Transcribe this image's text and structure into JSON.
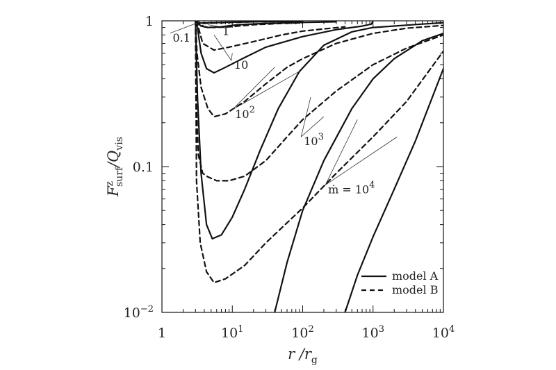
{
  "chart_data": {
    "type": "line",
    "x_scale": "log",
    "y_scale": "log",
    "xlim": [
      1,
      10000
    ],
    "ylim": [
      0.01,
      1
    ],
    "xlabel": {
      "main": "r /r",
      "sub": "g"
    },
    "ylabel": {
      "main": "F",
      "sup": "z",
      "sub": "surf",
      "main2": "/Q",
      "sub2": "vis"
    },
    "x_ticks": [
      {
        "value": 1,
        "label": "1"
      },
      {
        "value": 10,
        "label": "10",
        "sup": "1"
      },
      {
        "value": 100,
        "label": "10",
        "sup": "2"
      },
      {
        "value": 1000,
        "label": "10",
        "sup": "3"
      },
      {
        "value": 10000,
        "label": "10",
        "sup": "4"
      }
    ],
    "y_ticks": [
      {
        "value": 0.01,
        "label": "10",
        "sup": "−2"
      },
      {
        "value": 0.1,
        "label": "0.1"
      },
      {
        "value": 1,
        "label": "1"
      }
    ],
    "legend": {
      "position": "bottom-right",
      "entries": [
        {
          "label": "model A",
          "style": "solid"
        },
        {
          "label": "model B",
          "style": "dashed"
        }
      ]
    },
    "series": [
      {
        "group": "0.1",
        "style": "solid",
        "points": [
          [
            3,
            1
          ],
          [
            3.1,
            0.99
          ],
          [
            3.5,
            0.965
          ],
          [
            5,
            0.97
          ],
          [
            10,
            0.98
          ],
          [
            20,
            0.985
          ],
          [
            50,
            0.99
          ],
          [
            100,
            0.992
          ]
        ]
      },
      {
        "group": "0.1",
        "style": "dashed",
        "points": [
          [
            3,
            1
          ],
          [
            3.15,
            0.99
          ],
          [
            3.6,
            0.96
          ],
          [
            5,
            0.965
          ],
          [
            10,
            0.975
          ],
          [
            20,
            0.985
          ],
          [
            50,
            0.99
          ],
          [
            100,
            0.992
          ]
        ]
      },
      {
        "group": "1",
        "style": "solid",
        "points": [
          [
            3,
            1
          ],
          [
            3.1,
            0.98
          ],
          [
            3.6,
            0.92
          ],
          [
            4.5,
            0.9
          ],
          [
            7,
            0.91
          ],
          [
            12,
            0.94
          ],
          [
            30,
            0.96
          ],
          [
            100,
            0.975
          ],
          [
            300,
            0.985
          ]
        ]
      },
      {
        "group": "1",
        "style": "dashed",
        "points": [
          [
            3,
            1
          ],
          [
            3.2,
            0.97
          ],
          [
            4,
            0.91
          ],
          [
            5.5,
            0.9
          ],
          [
            9,
            0.91
          ],
          [
            20,
            0.94
          ],
          [
            50,
            0.96
          ],
          [
            100,
            0.97
          ]
        ]
      },
      {
        "group": "10",
        "style": "solid",
        "points": [
          [
            3,
            1
          ],
          [
            3.2,
            0.9
          ],
          [
            3.6,
            0.6
          ],
          [
            4.3,
            0.47
          ],
          [
            5.5,
            0.44
          ],
          [
            8,
            0.48
          ],
          [
            15,
            0.56
          ],
          [
            30,
            0.66
          ],
          [
            100,
            0.78
          ],
          [
            300,
            0.87
          ],
          [
            700,
            0.92
          ],
          [
            950,
            0.95
          ],
          [
            1000,
            1
          ]
        ]
      },
      {
        "group": "10",
        "style": "dashed",
        "points": [
          [
            3,
            1
          ],
          [
            3.2,
            0.95
          ],
          [
            3.8,
            0.7
          ],
          [
            5.5,
            0.63
          ],
          [
            9,
            0.66
          ],
          [
            20,
            0.72
          ],
          [
            50,
            0.8
          ],
          [
            100,
            0.85
          ],
          [
            200,
            0.88
          ],
          [
            400,
            0.91
          ]
        ]
      },
      {
        "group": "10²",
        "style": "solid",
        "points": [
          [
            3,
            1
          ],
          [
            3.05,
            0.7
          ],
          [
            3.2,
            0.3
          ],
          [
            3.6,
            0.09
          ],
          [
            4.3,
            0.04
          ],
          [
            5.2,
            0.032
          ],
          [
            7,
            0.034
          ],
          [
            10,
            0.045
          ],
          [
            15,
            0.07
          ],
          [
            25,
            0.13
          ],
          [
            45,
            0.25
          ],
          [
            90,
            0.45
          ],
          [
            200,
            0.68
          ],
          [
            500,
            0.84
          ],
          [
            1000,
            0.9
          ],
          [
            5000,
            0.95
          ],
          [
            10000,
            0.97
          ]
        ]
      },
      {
        "group": "10²",
        "style": "dashed",
        "points": [
          [
            3,
            1
          ],
          [
            3.15,
            0.6
          ],
          [
            3.6,
            0.35
          ],
          [
            4.5,
            0.25
          ],
          [
            5.5,
            0.22
          ],
          [
            8,
            0.23
          ],
          [
            15,
            0.28
          ],
          [
            30,
            0.37
          ],
          [
            60,
            0.48
          ],
          [
            100,
            0.55
          ],
          [
            300,
            0.7
          ],
          [
            1000,
            0.82
          ],
          [
            3000,
            0.89
          ],
          [
            10000,
            0.93
          ]
        ]
      },
      {
        "group": "10³",
        "style": "solid",
        "points": [
          [
            40,
            0.01
          ],
          [
            60,
            0.022
          ],
          [
            100,
            0.05
          ],
          [
            200,
            0.11
          ],
          [
            500,
            0.25
          ],
          [
            1000,
            0.4
          ],
          [
            2000,
            0.55
          ],
          [
            5000,
            0.73
          ],
          [
            10000,
            0.82
          ]
        ]
      },
      {
        "group": "10³",
        "style": "dashed",
        "points": [
          [
            3,
            1
          ],
          [
            3.05,
            0.3
          ],
          [
            3.3,
            0.12
          ],
          [
            3.8,
            0.09
          ],
          [
            4.5,
            0.085
          ],
          [
            6,
            0.08
          ],
          [
            9,
            0.08
          ],
          [
            15,
            0.086
          ],
          [
            30,
            0.11
          ],
          [
            60,
            0.16
          ],
          [
            100,
            0.21
          ],
          [
            300,
            0.33
          ],
          [
            1000,
            0.5
          ],
          [
            3000,
            0.65
          ],
          [
            10000,
            0.8
          ]
        ]
      },
      {
        "group": "10⁴",
        "style": "solid",
        "points": [
          [
            400,
            0.01
          ],
          [
            600,
            0.018
          ],
          [
            1000,
            0.033
          ],
          [
            2000,
            0.07
          ],
          [
            4000,
            0.15
          ],
          [
            10000,
            0.47
          ]
        ]
      },
      {
        "group": "10⁴",
        "style": "dashed",
        "points": [
          [
            3,
            1
          ],
          [
            3.1,
            0.08
          ],
          [
            3.5,
            0.03
          ],
          [
            4.3,
            0.019
          ],
          [
            5.5,
            0.016
          ],
          [
            8,
            0.017
          ],
          [
            15,
            0.021
          ],
          [
            30,
            0.03
          ],
          [
            100,
            0.052
          ],
          [
            300,
            0.09
          ],
          [
            1000,
            0.16
          ],
          [
            3000,
            0.28
          ],
          [
            10000,
            0.62
          ]
        ]
      }
    ],
    "annotations": [
      {
        "text": "0.1",
        "data_x": 1.3,
        "data_y": 0.77,
        "leader_to": [
          3.5,
          0.985
        ]
      },
      {
        "text": "1",
        "data_x": 6.6,
        "data_y": 0.855,
        "leader_to": [
          4.5,
          0.94
        ]
      },
      {
        "text": "10",
        "data_x": 9.7,
        "data_y": 0.5,
        "leader_to": [
          [
            5.5,
            0.8
          ],
          [
            10,
            0.6
          ]
        ]
      },
      {
        "text": "10",
        "sup": "2",
        "data_x": 10,
        "data_y": 0.23,
        "leader_to": [
          [
            90,
            0.45
          ],
          [
            40,
            0.48
          ]
        ]
      },
      {
        "text": "10",
        "sup": "3",
        "data_x": 95,
        "data_y": 0.15,
        "leader_to": [
          [
            130,
            0.3
          ],
          [
            200,
            0.22
          ]
        ]
      },
      {
        "text": "ṁ = 10",
        "sup": "4",
        "data_x": 210,
        "data_y": 0.07,
        "leader_to": [
          [
            600,
            0.21
          ],
          [
            2200,
            0.16
          ]
        ]
      }
    ]
  }
}
